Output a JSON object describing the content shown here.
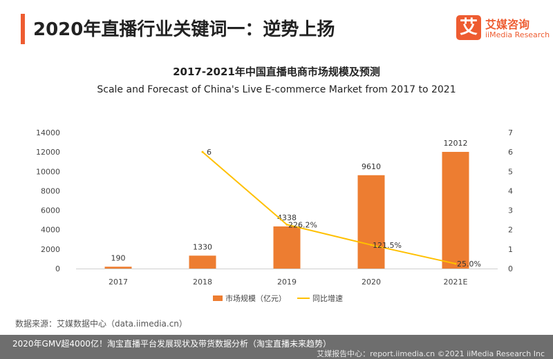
{
  "header": {
    "title": "2020年直播行业关键词一：逆势上扬",
    "accent_color": "#ee5c31"
  },
  "logo": {
    "glyph": "艾",
    "name_cn": "艾媒咨询",
    "name_en": "iiMedia Research",
    "color": "#ee5c31"
  },
  "chart_data": {
    "type": "bar",
    "title": "2017-2021年中国直播电商市场规模及预测",
    "subtitle": "Scale and Forecast of China's Live E-commerce Market from 2017 to 2021",
    "categories": [
      "2017",
      "2018",
      "2019",
      "2020",
      "2021E"
    ],
    "series": [
      {
        "name": "市场规模（亿元）",
        "type": "bar",
        "axis": "left",
        "color": "#ed7d31",
        "values": [
          190,
          1330,
          4338,
          9610,
          12012
        ],
        "labels": [
          "190",
          "1330",
          "4338",
          "9610",
          "12012"
        ]
      },
      {
        "name": "同比增速",
        "type": "line",
        "axis": "right",
        "color": "#ffc000",
        "values": [
          null,
          6,
          2.262,
          1.215,
          0.25
        ],
        "labels": [
          "",
          "6",
          "226.2%",
          "121.5%",
          "25.0%"
        ]
      }
    ],
    "y_left": {
      "min": 0,
      "max": 14000,
      "ticks": [
        "0",
        "2000",
        "4000",
        "6000",
        "8000",
        "10000",
        "12000",
        "14000"
      ]
    },
    "y_right": {
      "min": 0,
      "max": 7,
      "ticks": [
        "0",
        "1",
        "2",
        "3",
        "4",
        "5",
        "6",
        "7"
      ]
    },
    "grid": false,
    "legend_position": "bottom"
  },
  "footer": {
    "source": "数据来源：艾媒数据中心（data.iimedia.cn）",
    "caption": "2020年GMV超4000亿！淘宝直播平台发展现状及带货数据分析（淘宝直播未来趋势）",
    "right": "艾媒报告中心：report.iimedia.cn   ©2021  iiMedia Research  Inc"
  }
}
